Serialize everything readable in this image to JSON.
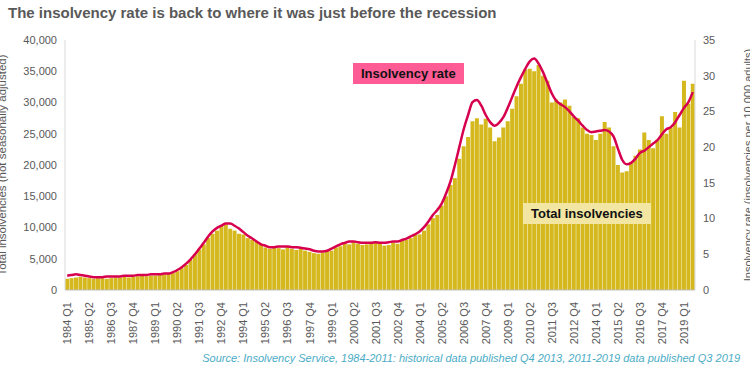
{
  "chart_data": {
    "type": "bar",
    "title": "The insolvency rate is back to where it was just before the recession",
    "y_label": "Total insolvencies (not seasonally adjusted)",
    "y2_label": "Insolvency rate (insolvencies per 10,000 adults)",
    "source": "Source: Insolvency Service, 1984-2011: historical data published Q4 2013, 2011-2019 data published Q3 2019",
    "grid": false,
    "categories": [
      "1984 Q1",
      null,
      null,
      null,
      null,
      "1985 Q2",
      null,
      null,
      null,
      null,
      "1986 Q3",
      null,
      null,
      null,
      null,
      "1987 Q4",
      null,
      null,
      null,
      null,
      "1989 Q1",
      null,
      null,
      null,
      null,
      "1990 Q2",
      null,
      null,
      null,
      null,
      "1991 Q3",
      null,
      null,
      null,
      null,
      "1992 Q4",
      null,
      null,
      null,
      null,
      "1994 Q1",
      null,
      null,
      null,
      null,
      "1995 Q2",
      null,
      null,
      null,
      null,
      "1996 Q3",
      null,
      null,
      null,
      null,
      "1997 Q4",
      null,
      null,
      null,
      null,
      "1999 Q1",
      null,
      null,
      null,
      null,
      "2000 Q2",
      null,
      null,
      null,
      null,
      "2001 Q3",
      null,
      null,
      null,
      null,
      "2002 Q4",
      null,
      null,
      null,
      null,
      "2004 Q1",
      null,
      null,
      null,
      null,
      "2005 Q2",
      null,
      null,
      null,
      null,
      "2006 Q3",
      null,
      null,
      null,
      null,
      "2007 Q4",
      null,
      null,
      null,
      null,
      "2009 Q1",
      null,
      null,
      null,
      null,
      "2010 Q2",
      null,
      null,
      null,
      null,
      "2011 Q3",
      null,
      null,
      null,
      null,
      "2012 Q4",
      null,
      null,
      null,
      null,
      "2014 Q1",
      null,
      null,
      null,
      null,
      "2015 Q2",
      null,
      null,
      null,
      null,
      "2016 Q3",
      null,
      null,
      null,
      null,
      "2017 Q4",
      null,
      null,
      null,
      null,
      "2019 Q1",
      null,
      null
    ],
    "series": [
      {
        "name": "Total insolvencies",
        "type": "bar",
        "color": "#d4b81e",
        "values": [
          1800,
          1900,
          2000,
          2100,
          2000,
          1900,
          1800,
          1900,
          1900,
          1800,
          1900,
          2000,
          2000,
          2100,
          2000,
          2100,
          2200,
          2300,
          2200,
          2300,
          2300,
          2400,
          2500,
          2600,
          2700,
          3000,
          3500,
          4000,
          4800,
          5700,
          6500,
          7300,
          8300,
          9000,
          9500,
          10200,
          10500,
          9800,
          9500,
          9000,
          8900,
          8300,
          8000,
          7700,
          7200,
          6800,
          6600,
          6800,
          6700,
          6500,
          6900,
          6600,
          6400,
          6600,
          6300,
          6100,
          5900,
          5800,
          6000,
          6200,
          6300,
          6800,
          7000,
          7500,
          7300,
          7600,
          7400,
          7200,
          7300,
          7400,
          7700,
          7500,
          7100,
          7200,
          7600,
          7400,
          7900,
          8000,
          8300,
          8800,
          8900,
          9500,
          10500,
          11500,
          12000,
          13500,
          15000,
          16800,
          17900,
          21000,
          23000,
          24500,
          27000,
          27500,
          26500,
          27400,
          26000,
          23800,
          24400,
          26000,
          27000,
          29000,
          31000,
          33000,
          35300,
          35400,
          35000,
          36000,
          34300,
          33500,
          30000,
          30500,
          30000,
          30500,
          29500,
          27700,
          27500,
          26000,
          25000,
          24800,
          24000,
          25000,
          26900,
          26000,
          23000,
          20000,
          18800,
          19000,
          20500,
          21500,
          22500,
          25200,
          24000,
          22700,
          24100,
          27800,
          25000,
          26000,
          28500,
          26000,
          33500,
          29800,
          33000
        ]
      },
      {
        "name": "Insolvency rate",
        "type": "line",
        "axis": "y2",
        "color": "#d6004f",
        "values": [
          2.0,
          2.1,
          2.2,
          2.1,
          2.0,
          1.9,
          1.8,
          1.8,
          1.8,
          1.9,
          1.9,
          1.9,
          1.9,
          2.0,
          2.0,
          2.0,
          2.1,
          2.1,
          2.1,
          2.2,
          2.2,
          2.2,
          2.3,
          2.3,
          2.5,
          2.8,
          3.2,
          3.7,
          4.3,
          5.0,
          5.8,
          6.6,
          7.5,
          8.2,
          8.7,
          9.0,
          9.3,
          9.3,
          9.0,
          8.6,
          8.1,
          7.6,
          7.2,
          6.8,
          6.4,
          6.2,
          6.0,
          6.0,
          6.1,
          6.1,
          6.1,
          6.0,
          6.0,
          5.9,
          5.8,
          5.7,
          5.5,
          5.4,
          5.4,
          5.5,
          5.8,
          6.1,
          6.4,
          6.6,
          6.8,
          6.8,
          6.7,
          6.6,
          6.6,
          6.6,
          6.7,
          6.6,
          6.6,
          6.7,
          6.8,
          6.8,
          7.0,
          7.2,
          7.5,
          7.8,
          8.2,
          8.8,
          9.6,
          10.5,
          11.2,
          12.1,
          13.5,
          15.2,
          17.5,
          20.0,
          22.5,
          24.5,
          26.3,
          26.6,
          25.8,
          24.5,
          23.5,
          23.0,
          23.4,
          24.2,
          25.5,
          27.0,
          28.5,
          29.8,
          31.0,
          32.0,
          32.4,
          31.7,
          30.5,
          29.0,
          27.5,
          26.5,
          26.0,
          25.6,
          25.0,
          24.3,
          23.7,
          23.0,
          22.4,
          22.1,
          22.2,
          22.3,
          22.4,
          22.2,
          21.5,
          19.8,
          18.2,
          17.6,
          17.8,
          18.4,
          19.2,
          19.5,
          20.0,
          20.5,
          21.0,
          21.8,
          22.5,
          22.8,
          23.5,
          24.5,
          25.5,
          26.3,
          27.7
        ]
      }
    ],
    "ylim": [
      0,
      40000
    ],
    "yticks": [
      0,
      {
        "value": 5000,
        "label": "5,000"
      },
      {
        "value": 10000,
        "label": "10,000"
      },
      {
        "value": 15000,
        "label": "15,000"
      },
      {
        "value": 20000,
        "label": "20,000"
      },
      {
        "value": 25000,
        "label": "25,000"
      },
      {
        "value": 30000,
        "label": "30,000"
      },
      {
        "value": 35000,
        "label": "35,000"
      },
      {
        "value": 40000,
        "label": "40,000"
      }
    ],
    "y2lim": [
      0,
      35
    ],
    "y2ticks": [
      0,
      5,
      10,
      15,
      20,
      25,
      30,
      35
    ]
  }
}
